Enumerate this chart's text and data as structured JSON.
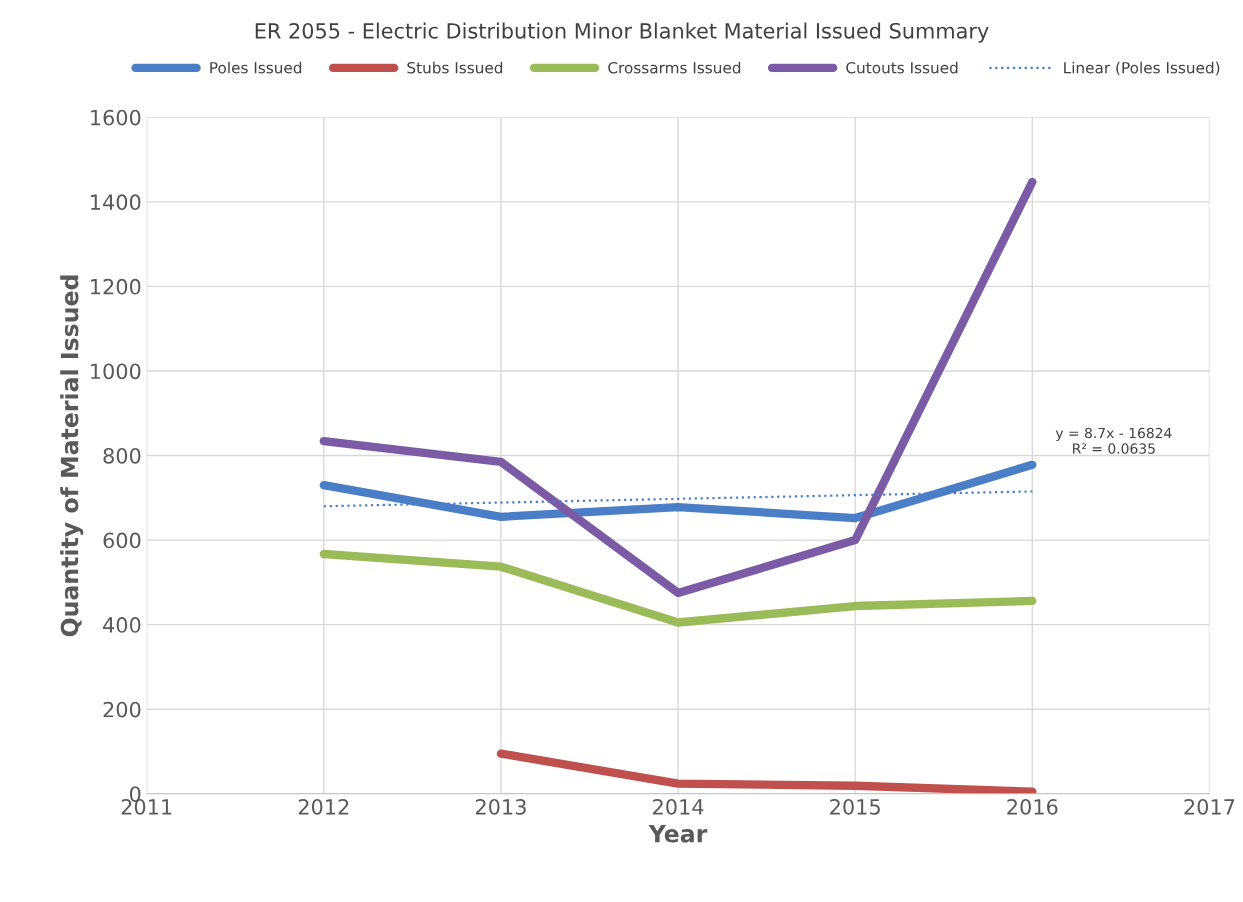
{
  "chart_data": {
    "type": "line",
    "title": "ER 2055 - Electric Distribution Minor Blanket Material Issued Summary",
    "xlabel": "Year",
    "ylabel": "Quantity of Material Issued",
    "x": [
      2012,
      2013,
      2014,
      2015,
      2016
    ],
    "series": [
      {
        "name": "Poles Issued",
        "color": "#4a7ec6",
        "values": [
          730,
          655,
          678,
          652,
          778
        ]
      },
      {
        "name": "Stubs Issued",
        "color": "#c0504d",
        "values": [
          null,
          95,
          24,
          19,
          5
        ]
      },
      {
        "name": "Crossarms Issued",
        "color": "#9bbb59",
        "values": [
          567,
          537,
          405,
          444,
          456
        ]
      },
      {
        "name": "Cutouts Issued",
        "color": "#7b5ba6",
        "values": [
          834,
          785,
          475,
          600,
          1447
        ]
      },
      {
        "name": "Linear (Poles Issued)",
        "color": "#4a7ec6",
        "line_style": "dotted",
        "x": [
          2012,
          2016
        ],
        "values": [
          680,
          715
        ]
      }
    ],
    "annotations": [
      "y = 8.7x - 16824\nR² = 0.0635"
    ],
    "xlim": [
      2011,
      2017
    ],
    "xticks": [
      2011,
      2012,
      2013,
      2014,
      2015,
      2016,
      2017
    ],
    "ylim": [
      0,
      1600
    ],
    "yticks": [
      0,
      200,
      400,
      600,
      800,
      1000,
      1200,
      1400,
      1600
    ],
    "grid": true,
    "legend": "top"
  }
}
